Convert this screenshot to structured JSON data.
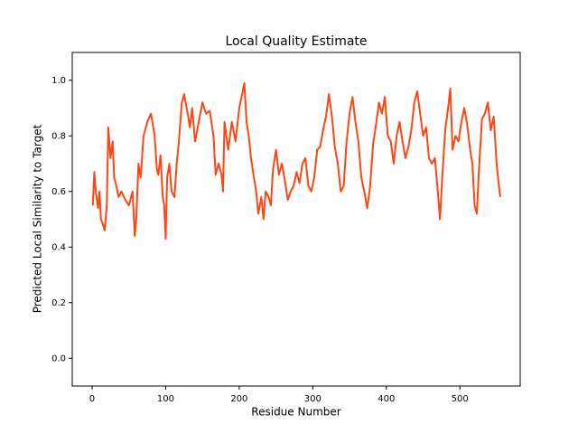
{
  "chart_data": {
    "type": "line",
    "title": "Local Quality Estimate",
    "x_label": "Residue Number",
    "y_label": "Predicted Local Similarity to Target",
    "xlim": [
      -27,
      582
    ],
    "ylim": [
      -0.1,
      1.1
    ],
    "xticks": [
      0,
      100,
      200,
      300,
      400,
      500
    ],
    "yticks": [
      {
        "value": 0,
        "label": "0.0"
      },
      0.2,
      0.4,
      0.6,
      0.8,
      {
        "value": 1,
        "label": "1.0"
      }
    ],
    "grid": false,
    "series": [
      {
        "color": "#ff4513",
        "x": [
          1,
          3,
          5,
          8,
          10,
          12,
          15,
          17,
          20,
          22,
          25,
          28,
          30,
          33,
          36,
          40,
          45,
          50,
          55,
          58,
          60,
          63,
          66,
          70,
          75,
          80,
          85,
          88,
          90,
          93,
          96,
          98,
          100,
          102,
          105,
          108,
          112,
          115,
          118,
          122,
          125,
          130,
          133,
          136,
          140,
          145,
          150,
          155,
          160,
          165,
          168,
          172,
          176,
          178,
          180,
          185,
          190,
          195,
          200,
          204,
          207,
          210,
          213,
          216,
          220,
          223,
          226,
          230,
          233,
          236,
          240,
          243,
          246,
          250,
          254,
          258,
          262,
          266,
          270,
          274,
          278,
          282,
          286,
          290,
          294,
          298,
          302,
          306,
          310,
          314,
          318,
          322,
          326,
          330,
          334,
          338,
          342,
          346,
          350,
          354,
          358,
          362,
          366,
          370,
          374,
          378,
          382,
          386,
          390,
          394,
          398,
          402,
          406,
          410,
          414,
          418,
          422,
          426,
          430,
          434,
          438,
          442,
          446,
          450,
          454,
          458,
          462,
          466,
          470,
          473,
          476,
          480,
          484,
          487,
          490,
          494,
          498,
          502,
          506,
          510,
          514,
          517,
          520,
          523,
          526,
          530,
          534,
          538,
          542,
          546,
          550,
          553,
          555
        ],
        "values": [
          0.55,
          0.67,
          0.6,
          0.54,
          0.6,
          0.5,
          0.48,
          0.46,
          0.55,
          0.83,
          0.72,
          0.78,
          0.65,
          0.62,
          0.58,
          0.6,
          0.57,
          0.55,
          0.6,
          0.44,
          0.5,
          0.7,
          0.65,
          0.8,
          0.85,
          0.88,
          0.8,
          0.68,
          0.66,
          0.73,
          0.58,
          0.55,
          0.43,
          0.65,
          0.7,
          0.6,
          0.58,
          0.7,
          0.78,
          0.92,
          0.95,
          0.88,
          0.83,
          0.9,
          0.78,
          0.85,
          0.92,
          0.88,
          0.89,
          0.8,
          0.66,
          0.7,
          0.66,
          0.6,
          0.85,
          0.75,
          0.85,
          0.78,
          0.9,
          0.95,
          0.99,
          0.85,
          0.8,
          0.72,
          0.65,
          0.6,
          0.52,
          0.58,
          0.5,
          0.6,
          0.58,
          0.55,
          0.68,
          0.75,
          0.66,
          0.7,
          0.64,
          0.57,
          0.6,
          0.62,
          0.67,
          0.63,
          0.7,
          0.72,
          0.62,
          0.6,
          0.65,
          0.75,
          0.76,
          0.82,
          0.87,
          0.95,
          0.87,
          0.76,
          0.7,
          0.6,
          0.62,
          0.78,
          0.88,
          0.94,
          0.85,
          0.78,
          0.65,
          0.6,
          0.54,
          0.62,
          0.77,
          0.84,
          0.92,
          0.88,
          0.94,
          0.8,
          0.78,
          0.7,
          0.8,
          0.85,
          0.78,
          0.72,
          0.76,
          0.82,
          0.92,
          0.96,
          0.88,
          0.8,
          0.83,
          0.72,
          0.7,
          0.72,
          0.6,
          0.5,
          0.65,
          0.82,
          0.9,
          0.97,
          0.75,
          0.8,
          0.78,
          0.85,
          0.9,
          0.84,
          0.75,
          0.7,
          0.55,
          0.52,
          0.68,
          0.86,
          0.88,
          0.92,
          0.82,
          0.87,
          0.7,
          0.62,
          0.58
        ]
      }
    ]
  }
}
